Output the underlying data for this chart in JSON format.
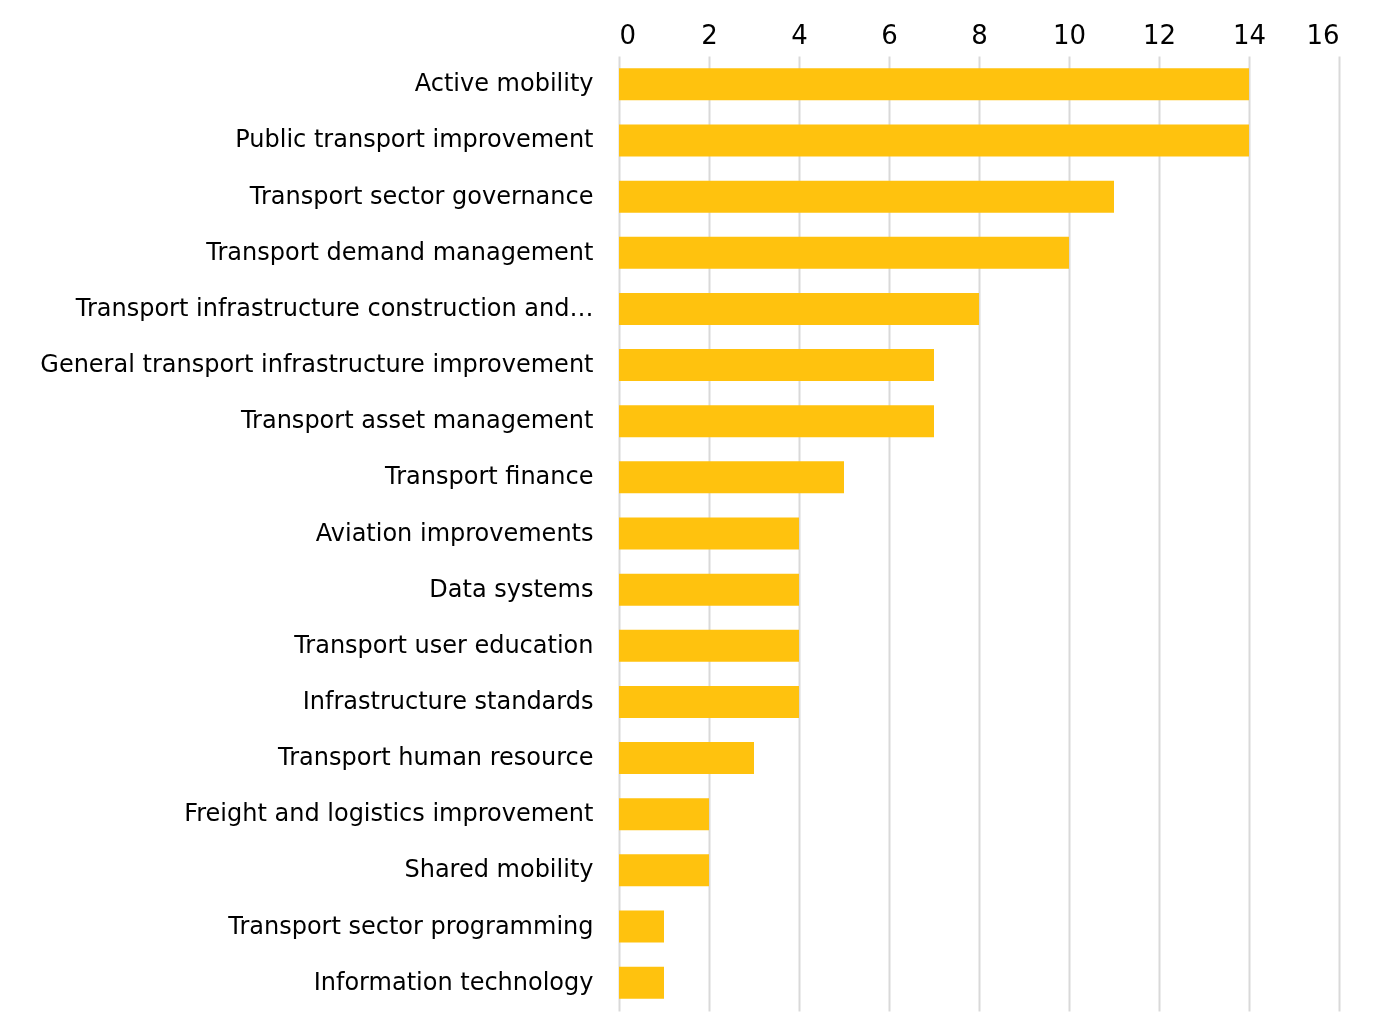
{
  "chart_data": {
    "type": "bar",
    "orientation": "horizontal",
    "categories": [
      "Active mobility",
      "Public transport improvement",
      "Transport sector governance",
      "Transport demand management",
      "Transport infrastructure construction and…",
      "General transport infrastructure improvement",
      "Transport asset management",
      "Transport finance",
      "Aviation improvements",
      "Data systems",
      "Transport user education",
      "Infrastructure standards",
      "Transport human resource",
      "Freight and logistics improvement",
      "Shared mobility",
      "Transport sector programming",
      "Information technology"
    ],
    "values": [
      14,
      14,
      11,
      10,
      8,
      7,
      7,
      5,
      4,
      4,
      4,
      4,
      3,
      2,
      2,
      1,
      1
    ],
    "color": "#ffc20e",
    "xlim": [
      0,
      16
    ],
    "xticks": [
      0,
      2,
      4,
      6,
      8,
      10,
      12,
      14,
      16
    ],
    "grid": "x"
  }
}
